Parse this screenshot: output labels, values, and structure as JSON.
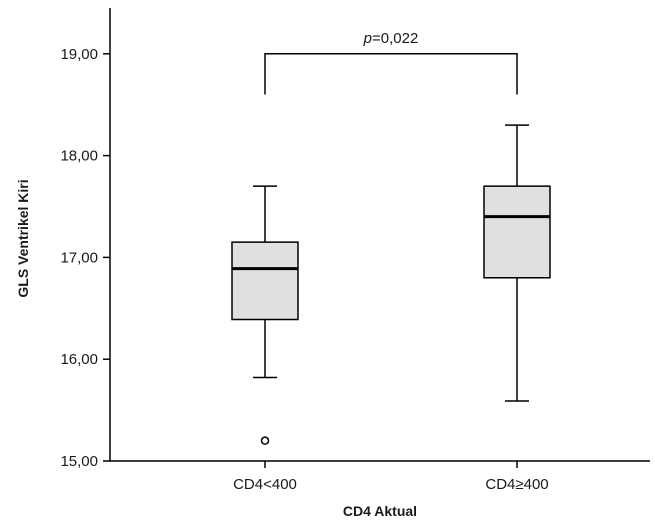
{
  "chart_data": {
    "type": "box",
    "title": "",
    "xlabel": "CD4 Aktual",
    "ylabel": "GLS Ventrikel Kiri",
    "ylim": [
      15.0,
      19.45
    ],
    "yticks": [
      {
        "value": 15.0,
        "label": "15,00"
      },
      {
        "value": 16.0,
        "label": "16,00"
      },
      {
        "value": 17.0,
        "label": "17,00"
      },
      {
        "value": 18.0,
        "label": "18,00"
      },
      {
        "value": 19.0,
        "label": "19,00"
      }
    ],
    "categories": [
      "CD4<400",
      "CD4≥400"
    ],
    "boxes": [
      {
        "category": "CD4<400",
        "whisker_low": 15.82,
        "q1": 16.39,
        "median": 16.89,
        "q3": 17.15,
        "whisker_high": 17.7,
        "outliers": [
          15.2
        ]
      },
      {
        "category": "CD4≥400",
        "whisker_low": 15.59,
        "q1": 16.8,
        "median": 17.4,
        "q3": 17.7,
        "whisker_high": 18.3,
        "outliers": []
      }
    ],
    "box_fill": "#e0e0e0",
    "grid": false,
    "annotation": {
      "italic": "p",
      "text": "=0,022",
      "between": [
        "CD4<400",
        "CD4≥400"
      ],
      "bracket_y": 19.0,
      "bracket_drop_y": 18.6
    }
  }
}
